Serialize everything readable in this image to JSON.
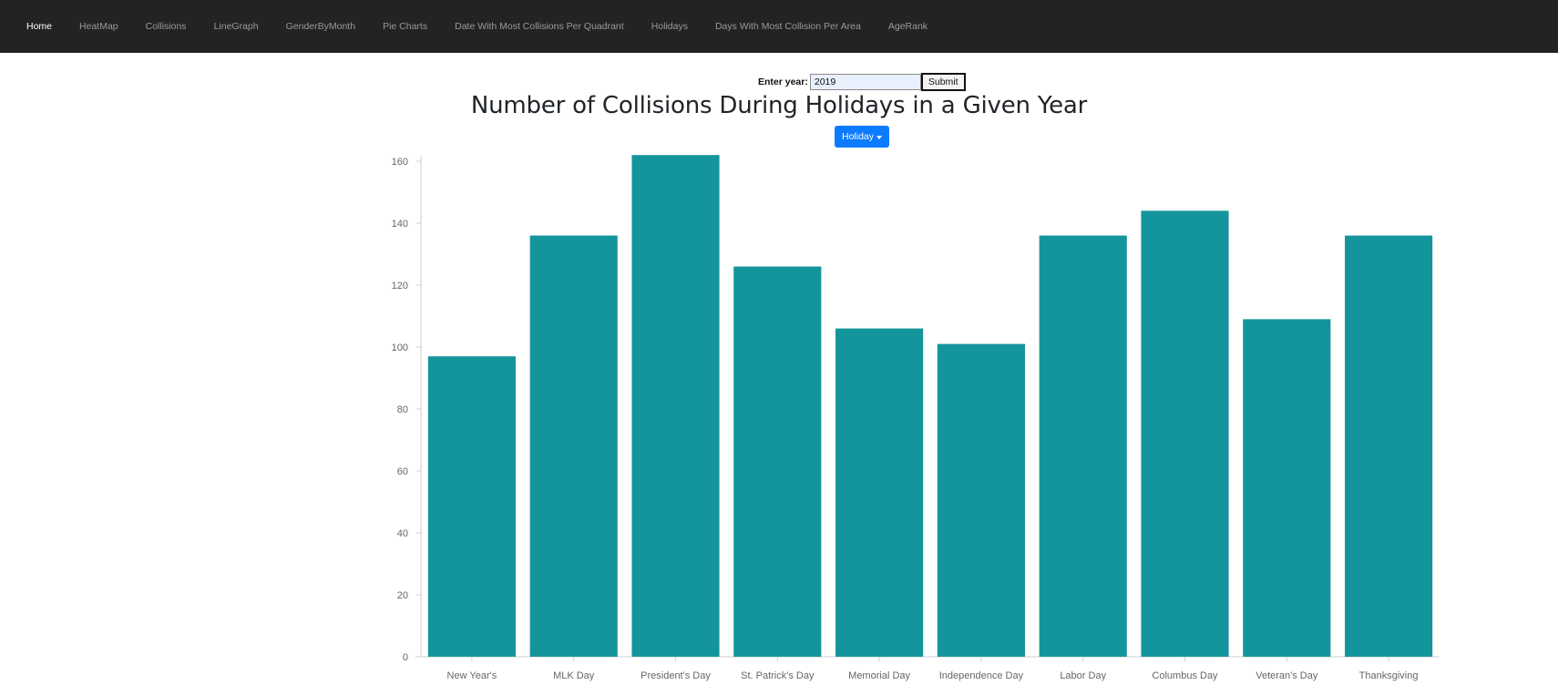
{
  "nav": {
    "items": [
      {
        "label": "Home",
        "active": true
      },
      {
        "label": "HeatMap",
        "active": false
      },
      {
        "label": "Collisions",
        "active": false
      },
      {
        "label": "LineGraph",
        "active": false
      },
      {
        "label": "GenderByMonth",
        "active": false
      },
      {
        "label": "Pie Charts",
        "active": false
      },
      {
        "label": "Date With Most Collisions Per Quadrant",
        "active": false
      },
      {
        "label": "Holidays",
        "active": false
      },
      {
        "label": "Days With Most Collision Per Area",
        "active": false
      },
      {
        "label": "AgeRank",
        "active": false
      }
    ]
  },
  "form": {
    "label": "Enter year:",
    "year_value": "2019",
    "submit_label": "Submit"
  },
  "page_title": "Number of Collisions During Holidays in a Given Year",
  "dropdown": {
    "label": "Holiday"
  },
  "colors": {
    "bar": "#14959b",
    "accent": "#0d7bfd",
    "navbar": "#232323"
  },
  "chart_data": {
    "type": "bar",
    "categories": [
      "New Year's",
      "MLK Day",
      "President's Day",
      "St. Patrick's Day",
      "Memorial Day",
      "Independence Day",
      "Labor Day",
      "Columbus Day",
      "Veteran's Day",
      "Thanksgiving"
    ],
    "values": [
      97,
      136,
      162,
      126,
      106,
      101,
      136,
      144,
      109,
      136
    ],
    "ylim": [
      0,
      160
    ],
    "yticks": [
      0,
      20,
      40,
      60,
      80,
      100,
      120,
      140,
      160
    ],
    "grid": false,
    "legend": "none"
  }
}
